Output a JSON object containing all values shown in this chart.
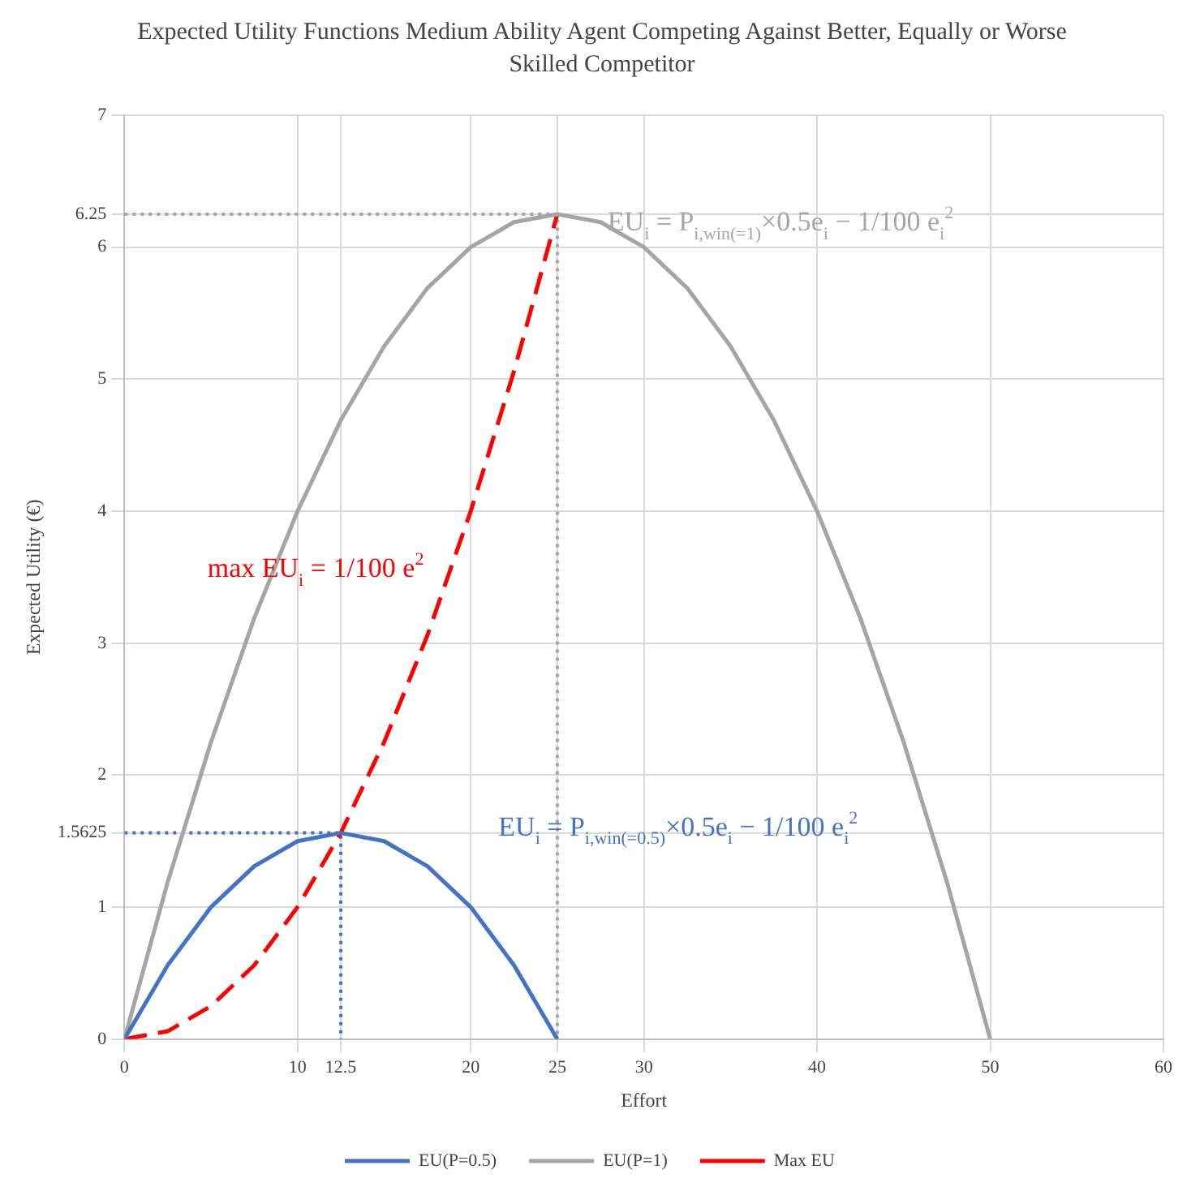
{
  "chart_data": {
    "type": "line",
    "title": "Expected Utility Functions Medium Ability Agent Competing Against Better, Equally or Worse Skilled Competitor",
    "xlabel": "Effort",
    "ylabel": "Expected Utility (€)",
    "xlim": [
      0,
      60
    ],
    "xticks": [
      0,
      10,
      12.5,
      20,
      25,
      30,
      40,
      50,
      60
    ],
    "ylim": [
      0,
      7
    ],
    "yticks": [
      0,
      1,
      1.5625,
      2,
      3,
      4,
      5,
      6,
      6.25,
      7
    ],
    "grid": true,
    "legend": "bottom",
    "marker": "none",
    "series": [
      {
        "name": "EU(P=0.5)",
        "color": "#4472c4",
        "line_style": "solid",
        "x": [
          0,
          2.5,
          5,
          7.5,
          10,
          12.5,
          15,
          17.5,
          20,
          22.5,
          25
        ],
        "values": [
          0,
          0.56,
          1,
          1.31,
          1.5,
          1.5625,
          1.5,
          1.31,
          1,
          0.56,
          0
        ]
      },
      {
        "name": "EU(P=1)",
        "color": "#a5a5a5",
        "line_style": "solid",
        "x": [
          0,
          2.5,
          5,
          7.5,
          10,
          12.5,
          15,
          17.5,
          20,
          22.5,
          25,
          27.5,
          30,
          32.5,
          35,
          37.5,
          40,
          42.5,
          45,
          47.5,
          50
        ],
        "values": [
          0,
          1.19,
          2.25,
          3.19,
          4,
          4.69,
          5.25,
          5.69,
          6,
          6.19,
          6.25,
          6.19,
          6,
          5.69,
          5.25,
          4.69,
          4,
          3.19,
          2.25,
          1.19,
          0
        ]
      },
      {
        "name": "Max EU",
        "color": "#ff0000",
        "line_style": "dashed",
        "x": [
          0,
          2.5,
          5,
          7.5,
          10,
          12.5,
          15,
          17.5,
          20,
          22.5,
          25
        ],
        "values": [
          0,
          0.06,
          0.25,
          0.56,
          1,
          1.5625,
          2.25,
          3.06,
          4,
          5.06,
          6.25
        ]
      },
      {
        "color": "#4472c4",
        "line_style": "dotted",
        "x": [
          0,
          12.5,
          12.5
        ],
        "values": [
          1.5625,
          1.5625,
          0
        ]
      },
      {
        "color": "#a5a5a5",
        "line_style": "dotted",
        "x": [
          0,
          25,
          25
        ],
        "values": [
          6.25,
          6.25,
          0
        ]
      }
    ],
    "annotations": [
      "EU$_{i}$ = P$_{i,win(=0.5)}$×0.5e$_{i}$ − 1/100 e$_{i}$$^{2}$",
      "EU$_{i}$ = P$_{i,win(=1)}$×0.5e$_{i}$ − 1/100 e$_{i}$$^{2}$",
      "max EU$_{i}$ = 1/100 e$^{2}$"
    ]
  }
}
